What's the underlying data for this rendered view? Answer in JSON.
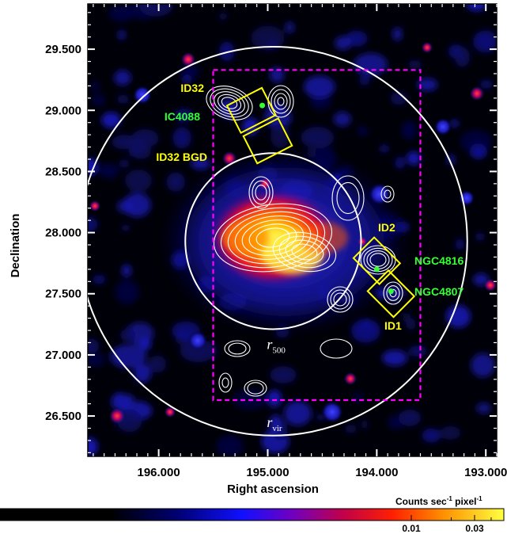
{
  "chart_data": {
    "type": "heatmap",
    "xlabel": "Right ascension",
    "ylabel": "Declination",
    "x_ticks": [
      196.0,
      195.0,
      194.0,
      193.0
    ],
    "x_tick_labels": [
      "196.000",
      "195.000",
      "194.000",
      "193.000"
    ],
    "y_ticks": [
      26.5,
      27.0,
      27.5,
      28.0,
      28.5,
      29.0,
      29.5
    ],
    "y_tick_labels": [
      "26.500",
      "27.000",
      "27.500",
      "28.000",
      "28.500",
      "29.000",
      "29.500"
    ],
    "xlim": [
      196.65,
      192.9
    ],
    "ylim": [
      26.17,
      29.87
    ],
    "center": {
      "ra": 194.95,
      "dec": 27.93
    },
    "circles": [
      {
        "label": "r",
        "subscript": "500",
        "radius_deg": 0.72
      },
      {
        "label": "r",
        "subscript": "vir",
        "radius_deg": 1.59
      }
    ],
    "field_box": {
      "ra_min": 193.6,
      "ra_max": 195.5,
      "dec_min": 26.63,
      "dec_max": 29.33,
      "color": "#ff00ff"
    },
    "regions": [
      {
        "name": "ID32",
        "ra": 195.15,
        "dec": 29.0,
        "w": 0.32,
        "h": 0.25,
        "angle": 27,
        "color": "#ffff00"
      },
      {
        "name": "ID32 BGD",
        "ra": 195.0,
        "dec": 28.75,
        "w": 0.32,
        "h": 0.25,
        "angle": 27,
        "color": "#ffff00"
      },
      {
        "name": "ID2",
        "ra": 194.0,
        "dec": 27.77,
        "w": 0.3,
        "h": 0.24,
        "angle": -45,
        "color": "#ffff00"
      },
      {
        "name": "ID1",
        "ra": 193.87,
        "dec": 27.5,
        "w": 0.3,
        "h": 0.24,
        "angle": -45,
        "color": "#ffff00"
      }
    ],
    "galaxies": [
      {
        "name": "IC4088",
        "ra": 195.05,
        "dec": 29.04,
        "color": "#33ff33"
      },
      {
        "name": "NGC4816",
        "ra": 194.0,
        "dec": 27.7,
        "color": "#33ff33"
      },
      {
        "name": "NGC4807",
        "ra": 193.87,
        "dec": 27.52,
        "color": "#33ff33"
      }
    ],
    "colorbar": {
      "title": "Counts sec",
      "title_exp1": "-1",
      "title_mid": " pixel",
      "title_exp2": "-1",
      "ticks": [
        0.01,
        0.03
      ],
      "tick_labels": [
        "0.01",
        "0.03"
      ]
    }
  }
}
